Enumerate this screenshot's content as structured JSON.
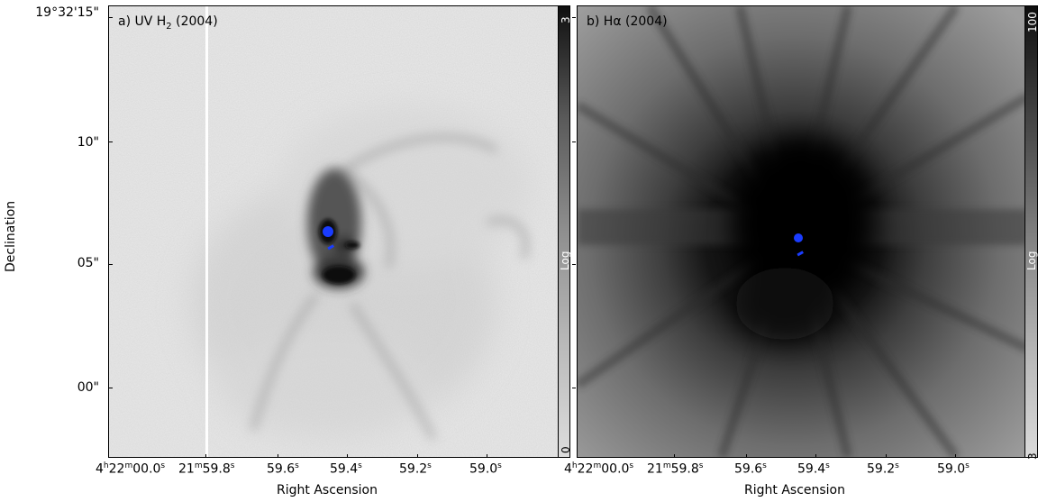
{
  "panels": [
    {
      "label_prefix": "a)  UV H",
      "label_sub": "2",
      "label_suffix": " (2004)",
      "colorbar_top": "3",
      "colorbar_mid": "Log",
      "colorbar_bottom": "0"
    },
    {
      "label_prefix": "b)  H",
      "label_greek": "α",
      "label_suffix": " (2004)",
      "colorbar_top": "100",
      "colorbar_mid": "Log",
      "colorbar_bottom": "3"
    }
  ],
  "axes": {
    "ylabel": "Declination",
    "xlabel": "Right Ascension",
    "yticks": [
      "19°32'15\"",
      "10\"",
      "05\"",
      "00\""
    ],
    "xticks": [
      {
        "pre": "4",
        "h": "h",
        "mid": "22",
        "m": "m",
        "post": "00.0",
        "s": "s"
      },
      {
        "pre": "21",
        "m": "m",
        "post": "59.8",
        "s": "s"
      },
      {
        "post": "59.6",
        "s": "s"
      },
      {
        "post": "59.4",
        "s": "s"
      },
      {
        "post": "59.2",
        "s": "s"
      },
      {
        "post": "59.0",
        "s": "s"
      }
    ]
  },
  "colors": {
    "marker": "#1a3cff",
    "frame": "#000000"
  }
}
